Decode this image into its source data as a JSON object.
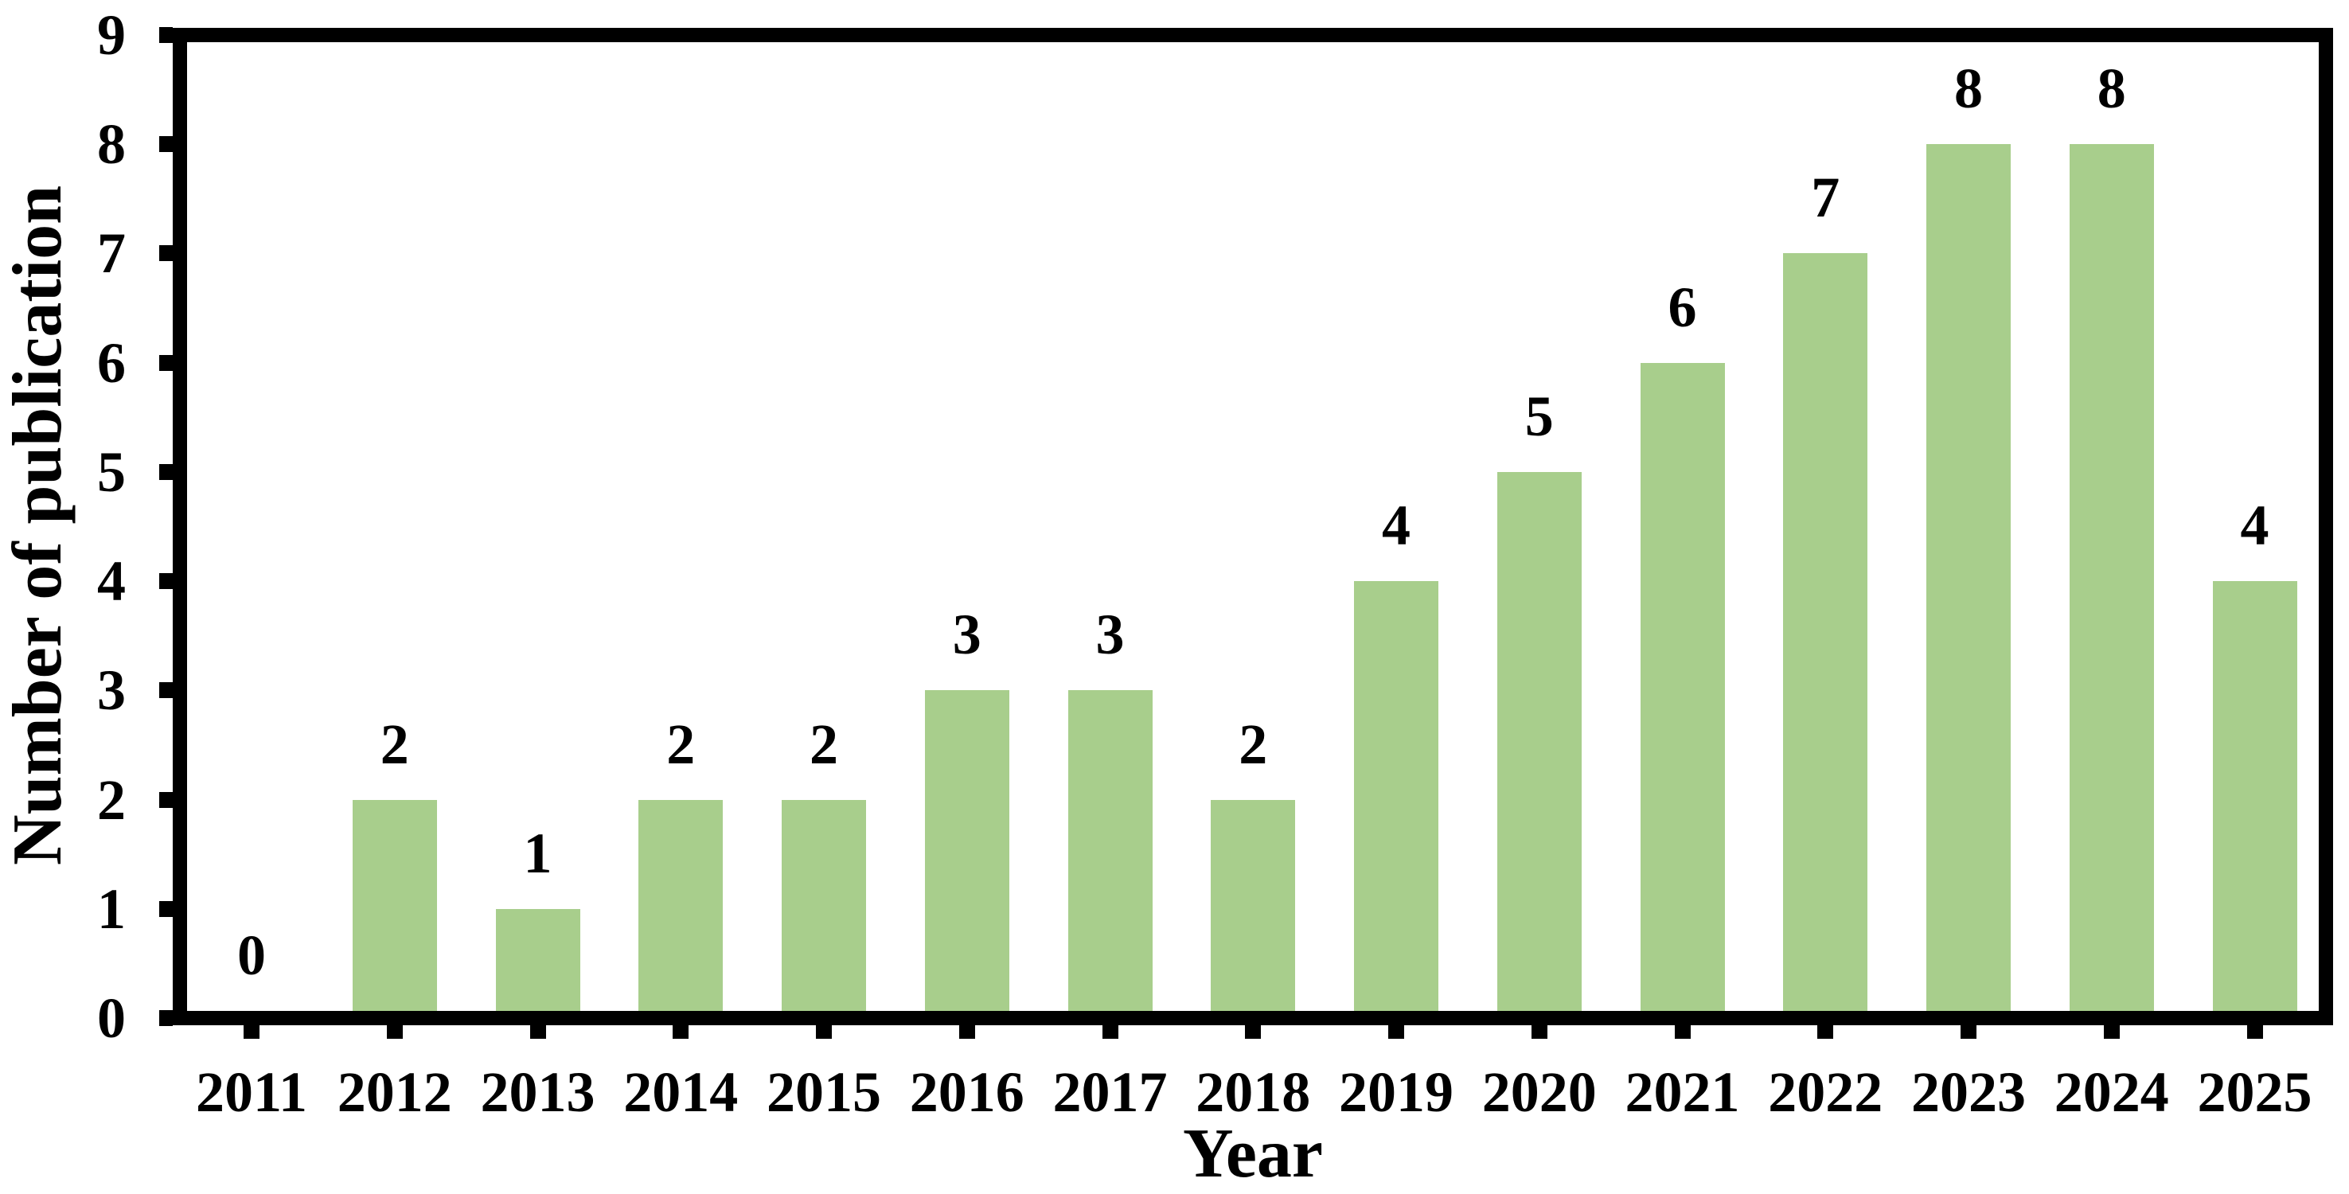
{
  "chart_data": {
    "type": "bar",
    "title": "",
    "xlabel": "Year",
    "ylabel": "Number of publication",
    "categories": [
      "2011",
      "2012",
      "2013",
      "2014",
      "2015",
      "2016",
      "2017",
      "2018",
      "2019",
      "2020",
      "2021",
      "2022",
      "2023",
      "2024",
      "2025"
    ],
    "values": [
      0,
      2,
      1,
      2,
      2,
      3,
      3,
      2,
      4,
      5,
      6,
      7,
      8,
      8,
      4
    ],
    "data_labels": [
      "0",
      "2",
      "1",
      "2",
      "2",
      "3",
      "3",
      "2",
      "4",
      "5",
      "6",
      "7",
      "8",
      "8",
      "4"
    ],
    "ylim": [
      0,
      9
    ],
    "yticks": [
      0,
      1,
      2,
      3,
      4,
      5,
      6,
      7,
      8,
      9
    ],
    "grid": false,
    "legend_position": "none",
    "bar_color": "#a8ce8c",
    "axis_color": "#000000",
    "text_color": "#000000",
    "background_color": "#ffffff"
  }
}
